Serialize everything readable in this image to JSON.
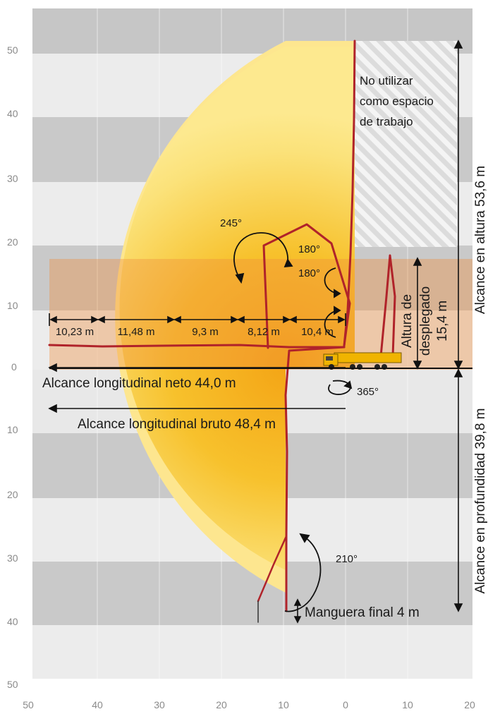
{
  "axes": {
    "y_labels": [
      "50",
      "40",
      "30",
      "20",
      "10",
      "0",
      "10",
      "20",
      "30",
      "40",
      "50"
    ],
    "x_labels": [
      "50",
      "40",
      "30",
      "20",
      "10",
      "0",
      "10",
      "20"
    ]
  },
  "segments": [
    "10,23 m",
    "11,48 m",
    "9,3 m",
    "8,12 m",
    "10,4 m"
  ],
  "labels": {
    "no_use_1": "No utilizar",
    "no_use_2": "como espacio",
    "no_use_3": "de trabajo",
    "height_reach": "Alcance en altura 53,6 m",
    "depth_reach": "Alcance en profundidad 39,8 m",
    "unfold_1": "Altura de",
    "unfold_2": "desplegado",
    "unfold_3": "15,4 m",
    "net_reach": "Alcance longitudinal neto 44,0 m",
    "gross_reach": "Alcance longitudinal bruto 48,4 m",
    "end_hose": "Manguera final 4 m"
  },
  "angles": {
    "a245": "245°",
    "a180_top": "180°",
    "a180_bottom": "180°",
    "a365": "365°",
    "a210": "210°"
  },
  "colors": {
    "band_dark": "#c9c9c9",
    "band_light": "#ececec",
    "zone_outer": "#fde58a",
    "zone_inner": "#f6a91c",
    "band_orange": "#f2a86a",
    "boom": "#b0232a",
    "truck_body": "#f0b400"
  }
}
